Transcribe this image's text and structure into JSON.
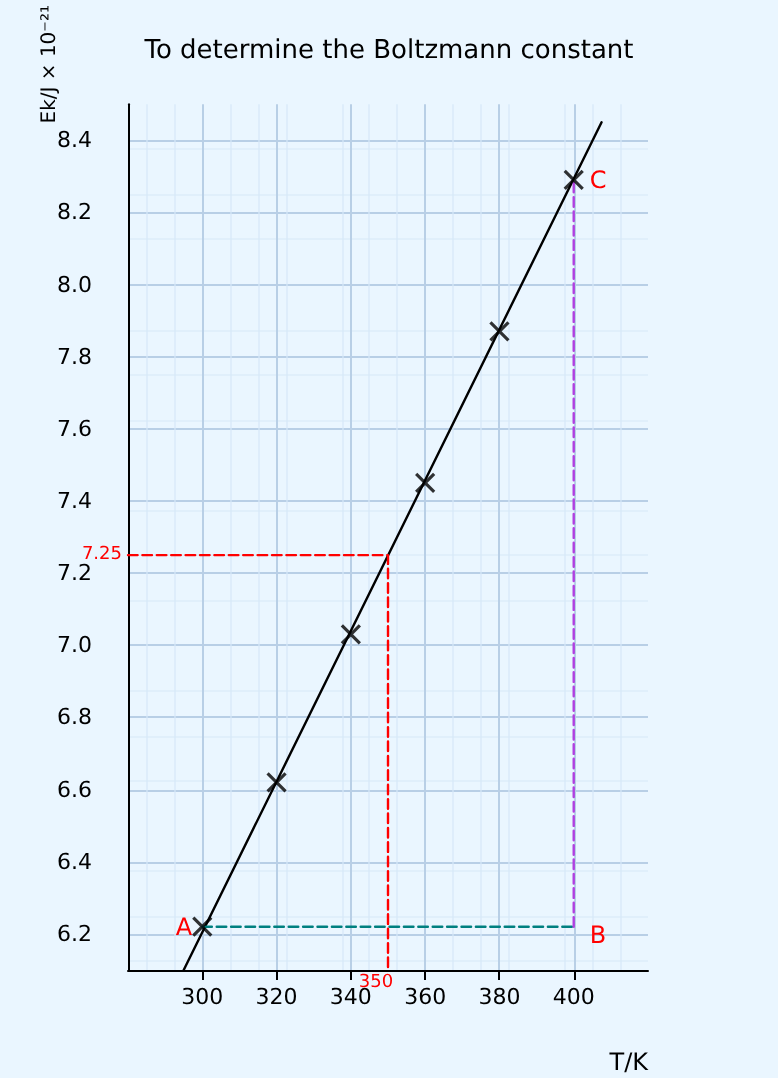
{
  "chart_data": {
    "type": "scatter",
    "title": "To determine the Boltzmann constant",
    "xlabel": "T/K",
    "ylabel": "Ek/J × 10⁻²¹",
    "xlim": [
      280,
      420
    ],
    "xticks": [
      300,
      320,
      340,
      360,
      380,
      400
    ],
    "ylim": [
      6.1,
      8.5
    ],
    "yticks": [
      6.2,
      6.4,
      6.6,
      6.8,
      {
        "value": 7,
        "label": "7.0"
      },
      7.2,
      7.4,
      7.6,
      7.8,
      {
        "value": 8,
        "label": "8.0"
      },
      8.2,
      8.4
    ],
    "grid": true,
    "series": [
      {
        "marker": "cross",
        "color": "#000000",
        "x": [
          300,
          320,
          340,
          360,
          380,
          400
        ],
        "values": [
          6.22,
          6.62,
          7.03,
          7.45,
          7.87,
          8.29
        ]
      },
      {
        "type": "line",
        "marker": "none",
        "line_style": "solid",
        "color": "#000000",
        "x": [
          295,
          407.5
        ],
        "values": [
          6.1,
          8.45
        ]
      },
      {
        "type": "line",
        "marker": "none",
        "line_style": "dashed",
        "color": "#ff0000",
        "x": [
          280,
          350,
          350
        ],
        "values": [
          7.25,
          7.25,
          6.1
        ]
      },
      {
        "type": "line",
        "marker": "none",
        "line_style": "dashed",
        "color": "#008080",
        "x": [
          300,
          400
        ],
        "values": [
          6.22,
          6.22
        ]
      },
      {
        "type": "line",
        "marker": "none",
        "line_style": "dashed",
        "color": "#b040e0",
        "x": [
          400,
          400
        ],
        "values": [
          6.22,
          8.29
        ]
      }
    ],
    "annotations": [
      {
        "text": "7.25",
        "x": 280,
        "y": 7.25
      },
      {
        "text": "350",
        "x": 350,
        "y": 6.1
      },
      {
        "text": "A",
        "x": 300,
        "y": 6.22
      },
      {
        "text": "B",
        "x": 400,
        "y": 6.22
      },
      {
        "text": "C",
        "x": 400,
        "y": 8.29
      }
    ]
  }
}
